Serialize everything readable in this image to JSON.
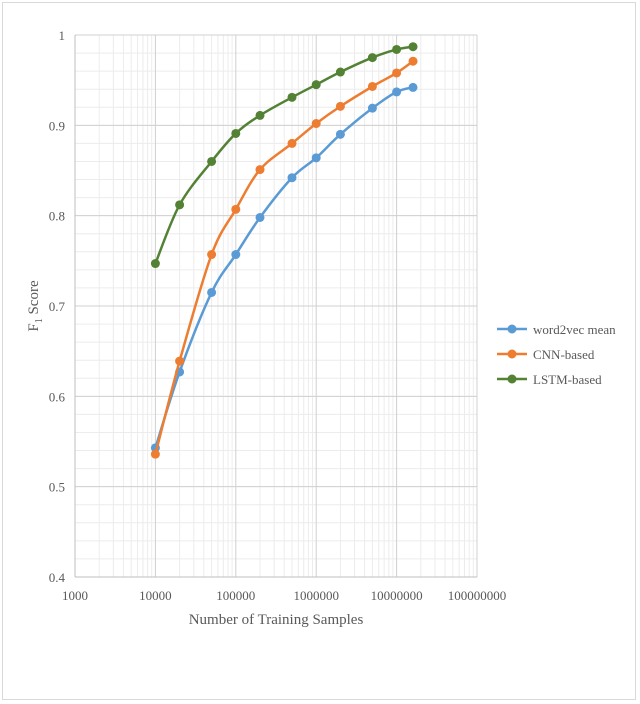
{
  "chart_data": {
    "type": "line",
    "title": "",
    "xlabel": "Number of Training Samples",
    "ylabel_main": "F",
    "ylabel_sub": "1",
    "ylabel_rest": " Score",
    "x_scale": "log",
    "xlim": [
      1000,
      100000000
    ],
    "ylim": [
      0.4,
      1.0
    ],
    "x_ticks": [
      1000,
      10000,
      100000,
      1000000,
      10000000,
      100000000
    ],
    "x_tick_labels": [
      "1000",
      "10000",
      "100000",
      "1000000",
      "10000000",
      "100000000"
    ],
    "y_ticks": [
      0.4,
      0.5,
      0.6,
      0.7,
      0.8,
      0.9,
      1.0
    ],
    "y_tick_labels": [
      "0.4",
      "0.5",
      "0.6",
      "0.7",
      "0.8",
      "0.9",
      "1"
    ],
    "grid": "major and minor",
    "legend_position": "right",
    "x": [
      10000,
      20000,
      50000,
      100000,
      200000,
      500000,
      1000000,
      2000000,
      5000000,
      10000000,
      16000000
    ],
    "series": [
      {
        "name": "word2vec mean",
        "color": "#5b9bd5",
        "values": [
          0.543,
          0.627,
          0.715,
          0.757,
          0.798,
          0.842,
          0.864,
          0.89,
          0.919,
          0.937,
          0.942
        ]
      },
      {
        "name": "CNN-based",
        "color": "#ed7d31",
        "values": [
          0.536,
          0.639,
          0.757,
          0.807,
          0.851,
          0.88,
          0.902,
          0.921,
          0.943,
          0.958,
          0.971
        ]
      },
      {
        "name": "LSTM-based",
        "color": "#548235",
        "values": [
          0.747,
          0.812,
          0.86,
          0.891,
          0.911,
          0.931,
          0.945,
          0.959,
          0.975,
          0.984,
          0.987
        ]
      }
    ]
  }
}
